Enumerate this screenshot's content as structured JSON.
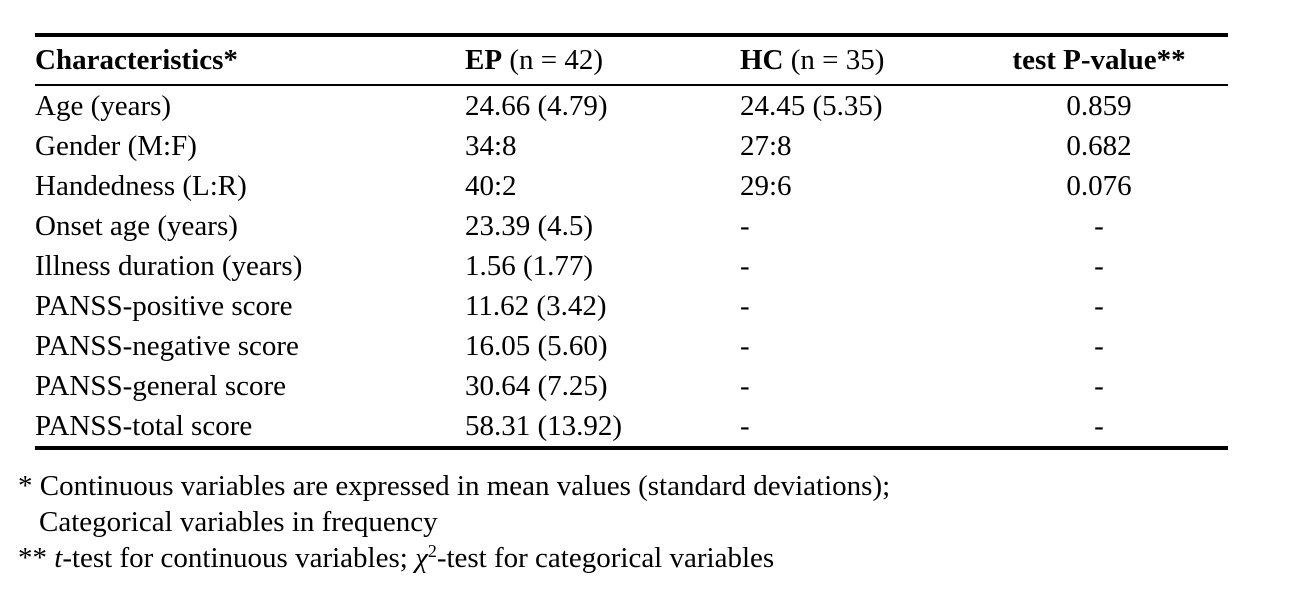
{
  "table": {
    "header": {
      "characteristics": "Characteristics*",
      "ep_group": "EP",
      "ep_n": " (n = 42)",
      "hc_group": "HC",
      "hc_n": " (n = 35)",
      "p_value": "test P-value**"
    },
    "rows": [
      {
        "characteristic": "Age (years)",
        "ep": "24.66 (4.79)",
        "hc": "24.45 (5.35)",
        "p": "0.859"
      },
      {
        "characteristic": "Gender (M:F)",
        "ep": "34:8",
        "hc": "27:8",
        "p": "0.682"
      },
      {
        "characteristic": "Handedness (L:R)",
        "ep": "40:2",
        "hc": "29:6",
        "p": "0.076"
      },
      {
        "characteristic": "Onset age (years)",
        "ep": "23.39 (4.5)",
        "hc": "-",
        "p": "-"
      },
      {
        "characteristic": "Illness duration (years)",
        "ep": "1.56 (1.77)",
        "hc": "-",
        "p": "-"
      },
      {
        "characteristic": "PANSS-positive score",
        "ep": "11.62 (3.42)",
        "hc": "-",
        "p": "-"
      },
      {
        "characteristic": "PANSS-negative score",
        "ep": "16.05 (5.60)",
        "hc": "-",
        "p": "-"
      },
      {
        "characteristic": "PANSS-general score",
        "ep": "30.64 (7.25)",
        "hc": "-",
        "p": "-"
      },
      {
        "characteristic": "PANSS-total score",
        "ep": "58.31 (13.92)",
        "hc": "-",
        "p": "-"
      }
    ]
  },
  "footnotes": {
    "marker1": "*",
    "line1": " Continuous variables are expressed in mean values (standard deviations);",
    "line2": "Categorical variables in frequency",
    "marker2": "**",
    "line3_t": "t",
    "line3_mid": "-test for continuous variables; ",
    "line3_chi": "χ",
    "line3_sup": "2",
    "line3_post": "-test for categorical variables"
  },
  "colors": {
    "text": "#000000",
    "background": "#ffffff",
    "rule": "#000000"
  }
}
